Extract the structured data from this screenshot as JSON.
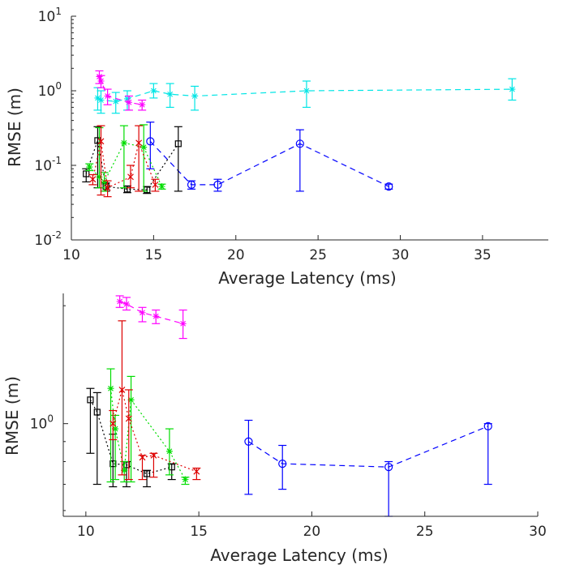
{
  "chart_data": [
    {
      "type": "scatter",
      "title": "",
      "xlabel": "Average Latency (ms)",
      "ylabel": "RMSE (m)",
      "xlim": [
        10,
        39
      ],
      "ylim": [
        0.01,
        10
      ],
      "yscale": "log",
      "grid": false,
      "xticks": [
        "10",
        "15",
        "20",
        "25",
        "30",
        "35"
      ],
      "yticks": [
        {
          "base": "10",
          "exp": "-2",
          "value": 0.01
        },
        {
          "base": "10",
          "exp": "-1",
          "value": 0.1
        },
        {
          "base": "10",
          "exp": "0",
          "value": 1
        },
        {
          "base": "10",
          "exp": "1",
          "value": 10
        }
      ],
      "series": [
        {
          "color": "#00e5e5",
          "marker": "star",
          "line": "dashed",
          "x": [
            11.6,
            11.8,
            12.7,
            13.4,
            15.0,
            16.0,
            17.5,
            24.3,
            36.8
          ],
          "y": [
            0.8,
            0.75,
            0.72,
            0.78,
            1.0,
            0.9,
            0.85,
            1.0,
            1.05
          ],
          "err_low": [
            0.55,
            0.5,
            0.5,
            0.55,
            0.8,
            0.6,
            0.55,
            0.6,
            0.75
          ],
          "err_high": [
            1.1,
            1.0,
            0.95,
            1.0,
            1.25,
            1.25,
            1.15,
            1.35,
            1.45
          ]
        },
        {
          "color": "#ff00ff",
          "marker": "star",
          "line": "dashed",
          "x": [
            11.7,
            11.8,
            12.2,
            13.5,
            14.3
          ],
          "y": [
            1.55,
            1.35,
            0.85,
            0.7,
            0.65
          ],
          "err_low": [
            1.25,
            1.1,
            0.65,
            0.55,
            0.55
          ],
          "err_high": [
            1.85,
            1.6,
            1.05,
            0.85,
            0.75
          ]
        },
        {
          "color": "#0000ff",
          "marker": "circle",
          "line": "dashed",
          "x": [
            14.8,
            17.3,
            18.9,
            23.9,
            29.3
          ],
          "y": [
            0.21,
            0.055,
            0.055,
            0.195,
            0.052
          ],
          "err_low": [
            0.09,
            0.048,
            0.045,
            0.045,
            0.048
          ],
          "err_high": [
            0.38,
            0.062,
            0.065,
            0.3,
            0.056
          ]
        },
        {
          "color": "#000000",
          "marker": "square",
          "line": "dotted",
          "x": [
            10.9,
            11.6,
            12.1,
            13.4,
            14.6,
            16.5
          ],
          "y": [
            0.077,
            0.215,
            0.052,
            0.048,
            0.047,
            0.195
          ],
          "err_low": [
            0.06,
            0.05,
            0.045,
            0.043,
            0.042,
            0.045
          ],
          "err_high": [
            0.09,
            0.33,
            0.058,
            0.053,
            0.052,
            0.33
          ]
        },
        {
          "color": "#00dd00",
          "marker": "star",
          "line": "dotted",
          "x": [
            11.1,
            11.7,
            12.0,
            13.2,
            14.4,
            15.5
          ],
          "y": [
            0.095,
            0.07,
            0.06,
            0.2,
            0.175,
            0.052
          ],
          "err_low": [
            0.085,
            0.05,
            0.045,
            0.05,
            0.045,
            0.048
          ],
          "err_high": [
            0.105,
            0.32,
            0.08,
            0.34,
            0.35,
            0.056
          ]
        },
        {
          "color": "#dd0000",
          "marker": "x",
          "line": "dotted",
          "x": [
            11.3,
            11.8,
            12.2,
            13.6,
            14.1,
            15.1
          ],
          "y": [
            0.065,
            0.21,
            0.05,
            0.07,
            0.2,
            0.055
          ],
          "err_low": [
            0.055,
            0.04,
            0.038,
            0.05,
            0.045,
            0.045
          ],
          "err_high": [
            0.075,
            0.34,
            0.062,
            0.1,
            0.34,
            0.065
          ]
        }
      ]
    },
    {
      "type": "scatter",
      "title": "",
      "xlabel": "Average Latency (ms)",
      "ylabel": "RMSE (m)",
      "xlim": [
        9,
        30
      ],
      "ylim": [
        0.58,
        2.15
      ],
      "yscale": "log",
      "grid": false,
      "xticks": [
        "10",
        "15",
        "20",
        "25",
        "30"
      ],
      "yticks": [
        {
          "base": "10",
          "exp": "0",
          "value": 1
        }
      ],
      "series": [
        {
          "color": "#ff00ff",
          "marker": "star",
          "line": "dashed",
          "x": [
            11.5,
            11.8,
            12.5,
            13.1,
            14.3
          ],
          "y": [
            2.05,
            2.02,
            1.92,
            1.88,
            1.8
          ],
          "err_low": [
            1.98,
            1.95,
            1.82,
            1.8,
            1.65
          ],
          "err_high": [
            2.12,
            2.1,
            1.98,
            1.95,
            1.95
          ]
        },
        {
          "color": "#0000ff",
          "marker": "circle",
          "line": "dashed",
          "x": [
            17.2,
            18.7,
            23.4,
            27.8
          ],
          "y": [
            0.9,
            0.79,
            0.775,
            0.985
          ],
          "err_low": [
            0.66,
            0.68,
            0.58,
            0.7
          ],
          "err_high": [
            1.02,
            0.88,
            0.8,
            1.0
          ]
        },
        {
          "color": "#000000",
          "marker": "square",
          "line": "dotted",
          "x": [
            10.2,
            10.5,
            11.2,
            11.8,
            12.7,
            13.8
          ],
          "y": [
            1.15,
            1.07,
            0.79,
            0.785,
            0.745,
            0.775
          ],
          "err_low": [
            0.84,
            0.7,
            0.69,
            0.69,
            0.69,
            0.72
          ],
          "err_high": [
            1.23,
            1.2,
            0.94,
            0.8,
            0.76,
            0.79
          ]
        },
        {
          "color": "#00dd00",
          "marker": "star",
          "line": "dotted",
          "x": [
            11.1,
            11.3,
            11.7,
            12.0,
            13.7,
            14.4
          ],
          "y": [
            1.23,
            0.97,
            0.76,
            1.15,
            0.85,
            0.72
          ],
          "err_low": [
            0.71,
            0.72,
            0.71,
            0.71,
            0.74,
            0.7
          ],
          "err_high": [
            1.38,
            1.05,
            0.8,
            1.32,
            0.97,
            0.73
          ]
        },
        {
          "color": "#dd0000",
          "marker": "x",
          "line": "dotted",
          "x": [
            11.2,
            11.6,
            11.9,
            12.5,
            13.0,
            14.9
          ],
          "y": [
            1.0,
            1.22,
            1.03,
            0.82,
            0.83,
            0.755
          ],
          "err_low": [
            0.91,
            0.74,
            0.72,
            0.72,
            0.73,
            0.72
          ],
          "err_high": [
            1.08,
            1.83,
            1.22,
            0.83,
            0.84,
            0.77
          ]
        }
      ]
    }
  ]
}
